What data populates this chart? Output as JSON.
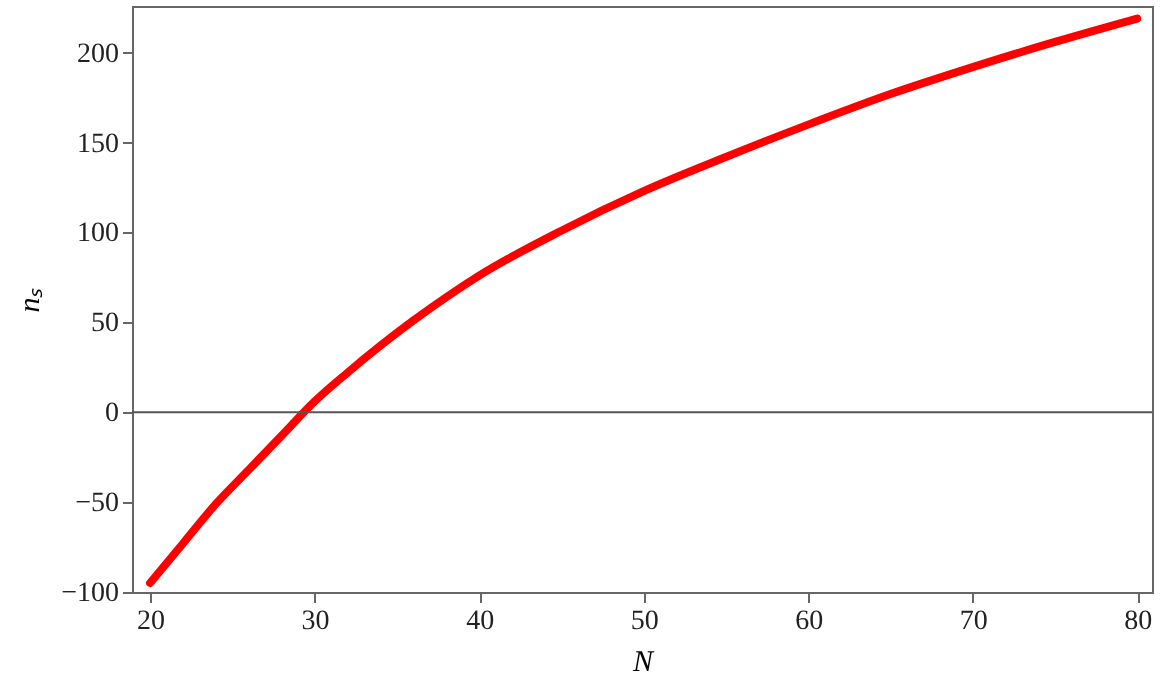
{
  "chart_data": {
    "type": "line",
    "xlabel": "N",
    "ylabel": "nₛ",
    "x": [
      20,
      22,
      24,
      26,
      28,
      30,
      32,
      34,
      36,
      38,
      40,
      45,
      50,
      55,
      60,
      65,
      70,
      75,
      80
    ],
    "series": [
      {
        "color": "#ff0000",
        "values": [
          -95,
          -73,
          -51,
          -32,
          -13,
          6,
          22,
          37,
          51,
          64,
          76,
          101,
          123,
          142,
          160,
          177,
          192,
          206,
          219
        ]
      }
    ],
    "xlim": [
      18.9,
      80.9
    ],
    "xticks": [
      20,
      30,
      40,
      50,
      60,
      70,
      80
    ],
    "ylim": [
      -100,
      226
    ],
    "yticks": [
      -100,
      -50,
      0,
      50,
      100,
      150,
      200
    ],
    "ref_lines": [
      {
        "axis": "y",
        "value": 0,
        "color": "#555555"
      }
    ],
    "grid": false,
    "marker": "none",
    "line_style": "solid"
  }
}
